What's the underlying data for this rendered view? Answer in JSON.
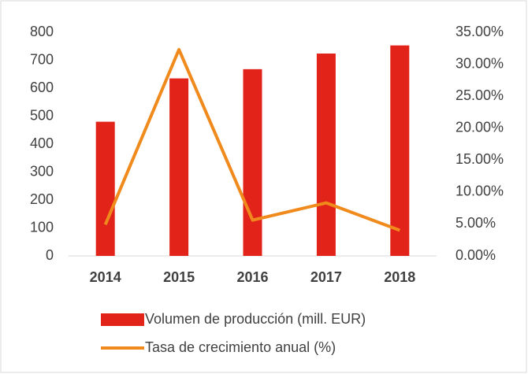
{
  "chart_data": {
    "type": "combo",
    "categories": [
      "2014",
      "2015",
      "2016",
      "2017",
      "2018"
    ],
    "series": [
      {
        "name": "Volumen de producción (mill. EUR)",
        "type": "bar",
        "color": "#e2231a",
        "values": [
          480,
          635,
          668,
          724,
          753
        ]
      },
      {
        "name": "Tasa de crecimiento anual (%)",
        "type": "line",
        "axis": "y2",
        "color": "#f08a1c",
        "values": [
          4.9,
          32.3,
          5.6,
          8.3,
          4.0
        ]
      }
    ],
    "ylim": [
      0,
      800
    ],
    "yticks": [
      0,
      100,
      200,
      300,
      400,
      500,
      600,
      700,
      800
    ],
    "y2lim": [
      0,
      35
    ],
    "y2ticks": [
      {
        "value": 0,
        "label": "0.00%"
      },
      {
        "value": 5,
        "label": "5.00%"
      },
      {
        "value": 10,
        "label": "10.00%"
      },
      {
        "value": 15,
        "label": "15.00%"
      },
      {
        "value": 20,
        "label": "20.00%"
      },
      {
        "value": 25,
        "label": "25.00%"
      },
      {
        "value": 30,
        "label": "30.00%"
      },
      {
        "value": 35,
        "label": "35.00%"
      }
    ],
    "legend": "bottom"
  }
}
